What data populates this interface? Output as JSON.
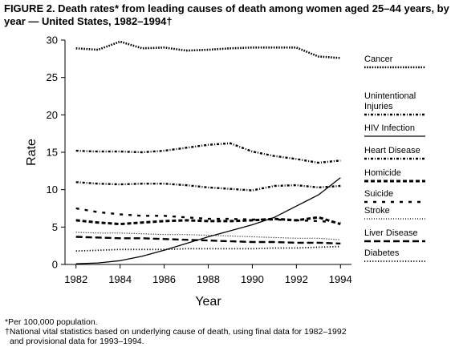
{
  "title": "FIGURE 2. Death rates* from leading causes of death among women aged 25–44 years, by year — United States, 1982–1994†",
  "footnotes": [
    "*Per 100,000 population.",
    "†National vital statistics based on underlying cause of death, using final data for 1982–1992",
    "and provisional data for 1993–1994."
  ],
  "chart_data": {
    "type": "line",
    "title": "FIGURE 2. Death rates* from leading causes of death among women aged 25–44 years, by year — United States, 1982–1994†",
    "xlabel": "Year",
    "ylabel": "Rate",
    "xlim": [
      1981.5,
      1994.5
    ],
    "ylim": [
      0,
      30
    ],
    "x_ticks": [
      1982,
      1984,
      1986,
      1988,
      1990,
      1992,
      1994
    ],
    "y_ticks": [
      0,
      5,
      10,
      15,
      20,
      25,
      30
    ],
    "grid": false,
    "legend": "right",
    "x": [
      1982,
      1983,
      1984,
      1985,
      1986,
      1987,
      1988,
      1989,
      1990,
      1991,
      1992,
      1993,
      1994
    ],
    "series": [
      {
        "name": "Cancer",
        "style": "dotted-heavy",
        "values": [
          28.9,
          28.7,
          29.8,
          28.9,
          29.0,
          28.6,
          28.7,
          28.9,
          29.0,
          29.0,
          29.0,
          27.8,
          27.6
        ]
      },
      {
        "name": "Unintentional Injuries",
        "style": "dash-dot",
        "values": [
          11.0,
          10.8,
          10.7,
          10.8,
          10.8,
          10.6,
          10.3,
          10.1,
          9.9,
          10.5,
          10.6,
          10.3,
          10.5
        ]
      },
      {
        "name": "HIV Infection",
        "style": "solid",
        "values": [
          0.1,
          0.2,
          0.5,
          1.1,
          1.9,
          2.8,
          3.7,
          4.5,
          5.3,
          6.3,
          7.8,
          9.3,
          11.6
        ]
      },
      {
        "name": "Heart Disease",
        "style": "dash-dot",
        "values": [
          15.2,
          15.1,
          15.1,
          15.0,
          15.2,
          15.6,
          16.0,
          16.2,
          15.1,
          14.5,
          14.1,
          13.6,
          13.9
        ]
      },
      {
        "name": "Homicide",
        "style": "heavy-dash",
        "values": [
          5.9,
          5.6,
          5.4,
          5.6,
          5.8,
          5.9,
          5.8,
          5.8,
          5.9,
          6.1,
          5.9,
          6.3,
          5.4
        ]
      },
      {
        "name": "Suicide",
        "style": "sparse-dash",
        "values": [
          7.5,
          7.0,
          6.7,
          6.5,
          6.5,
          6.3,
          6.1,
          6.1,
          6.0,
          6.0,
          5.9,
          5.8,
          5.6
        ]
      },
      {
        "name": "Stroke",
        "style": "fine-dotted",
        "values": [
          4.3,
          4.2,
          4.2,
          4.1,
          4.0,
          4.0,
          3.9,
          3.8,
          3.7,
          3.6,
          3.5,
          3.5,
          3.3
        ]
      },
      {
        "name": "Liver Disease",
        "style": "long-dash",
        "values": [
          3.7,
          3.6,
          3.5,
          3.5,
          3.4,
          3.3,
          3.2,
          3.1,
          3.0,
          3.0,
          2.9,
          2.9,
          2.8
        ]
      },
      {
        "name": "Diabetes",
        "style": "dotted-light",
        "values": [
          1.8,
          1.9,
          2.0,
          2.0,
          2.0,
          2.1,
          2.1,
          2.1,
          2.1,
          2.2,
          2.2,
          2.3,
          2.4
        ]
      }
    ]
  }
}
